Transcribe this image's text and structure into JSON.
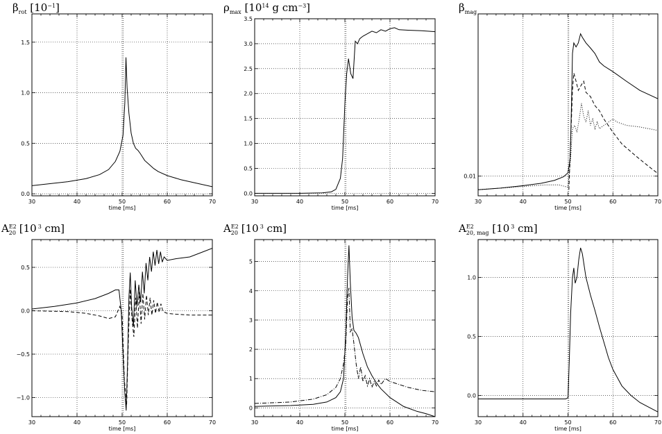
{
  "chart_data": [
    {
      "type": "line",
      "title_main": "β",
      "title_sub": "rot",
      "title_rest": " [10",
      "title_sup": "−1",
      "title_end": "]",
      "xlabel": "time [ms]",
      "xlim": [
        30,
        70
      ],
      "ylim": [
        -0.02,
        1.78
      ],
      "xticks": [
        30,
        40,
        50,
        60,
        70
      ],
      "xticklabels": [
        "30",
        "40",
        "50",
        "60",
        "70"
      ],
      "yticks": [
        0.0,
        0.5,
        1.0,
        1.5
      ],
      "yticklabels": [
        "0.0",
        "0.5",
        "1.0",
        "1.5"
      ],
      "vline": 50.2,
      "series": [
        {
          "style": "solid",
          "x": [
            30,
            34,
            38,
            42,
            45,
            47,
            48.5,
            49.5,
            50.2,
            50.6,
            50.85,
            51.1,
            51.5,
            52,
            52.5,
            53,
            53.5,
            54,
            55,
            56,
            57,
            58,
            60,
            63,
            66,
            70
          ],
          "y": [
            0.08,
            0.1,
            0.12,
            0.15,
            0.19,
            0.24,
            0.32,
            0.42,
            0.58,
            0.9,
            1.35,
            1.05,
            0.8,
            0.6,
            0.5,
            0.45,
            0.43,
            0.4,
            0.33,
            0.29,
            0.25,
            0.22,
            0.18,
            0.14,
            0.11,
            0.07
          ]
        }
      ]
    },
    {
      "type": "line",
      "title_main": "ρ",
      "title_sub": "max",
      "title_rest": " [10",
      "title_sup": "14",
      "title_end": " g cm",
      "title_sup2": "−3",
      "title_end2": "]",
      "xlabel": "time [ms]",
      "xlim": [
        30,
        70
      ],
      "ylim": [
        -0.05,
        3.5
      ],
      "xticks": [
        30,
        40,
        50,
        60,
        70
      ],
      "xticklabels": [
        "30",
        "40",
        "50",
        "60",
        "70"
      ],
      "yticks": [
        0.0,
        0.5,
        1.0,
        1.5,
        2.0,
        2.5,
        3.0,
        3.5
      ],
      "yticklabels": [
        "0.0",
        "0.5",
        "1.0",
        "1.5",
        "2.0",
        "2.5",
        "3.0",
        "3.5"
      ],
      "vline": 50.2,
      "series": [
        {
          "style": "solid",
          "x": [
            30,
            40,
            45,
            47,
            48,
            49,
            49.5,
            50,
            50.4,
            50.8,
            51.3,
            51.8,
            52.3,
            52.8,
            53.3,
            54,
            55,
            56,
            57,
            58,
            59,
            60,
            61,
            62,
            64,
            67,
            70
          ],
          "y": [
            0.0,
            0.0,
            0.01,
            0.03,
            0.08,
            0.3,
            0.7,
            1.8,
            2.4,
            2.7,
            2.4,
            2.3,
            3.05,
            3.0,
            3.1,
            3.15,
            3.2,
            3.25,
            3.22,
            3.28,
            3.25,
            3.3,
            3.32,
            3.28,
            3.27,
            3.26,
            3.24
          ]
        }
      ]
    },
    {
      "type": "line",
      "title_main": "β",
      "title_sub": "mag",
      "title_rest": "",
      "xlabel": "time [ms]",
      "xlim": [
        30,
        70
      ],
      "ylim": [
        0.0075,
        0.107
      ],
      "yscale": "log",
      "xticks": [
        30,
        40,
        50,
        60,
        70
      ],
      "xticklabels": [
        "30",
        "40",
        "50",
        "60",
        "70"
      ],
      "yticks": [
        0.01
      ],
      "yticklabels": [
        "0.01"
      ],
      "vline": 50.2,
      "series": [
        {
          "style": "solid",
          "x": [
            30,
            35,
            40,
            44,
            47,
            49,
            50,
            50.5,
            50.8,
            51,
            51.3,
            51.8,
            52.3,
            52.8,
            53.2,
            54,
            55,
            56,
            57,
            58,
            60,
            63,
            66,
            70
          ],
          "y": [
            0.0082,
            0.0084,
            0.0087,
            0.009,
            0.0094,
            0.0099,
            0.0105,
            0.013,
            0.03,
            0.06,
            0.07,
            0.066,
            0.07,
            0.08,
            0.076,
            0.07,
            0.065,
            0.06,
            0.053,
            0.05,
            0.046,
            0.04,
            0.035,
            0.031
          ]
        },
        {
          "style": "dashed",
          "x": [
            50.2,
            50.5,
            51,
            51.3,
            51.8,
            52.3,
            53,
            53.5,
            54,
            55,
            56,
            57,
            58,
            60,
            62,
            65,
            68,
            70
          ],
          "y": [
            0.0082,
            0.014,
            0.035,
            0.045,
            0.04,
            0.035,
            0.038,
            0.04,
            0.034,
            0.032,
            0.028,
            0.026,
            0.023,
            0.019,
            0.016,
            0.0135,
            0.0115,
            0.0104
          ]
        },
        {
          "style": "dotted",
          "x": [
            30,
            40,
            45,
            48,
            50,
            50.5,
            51,
            51.5,
            52,
            52.5,
            53,
            53.5,
            54,
            54.5,
            55,
            55.5,
            56,
            56.5,
            57,
            58,
            59,
            60,
            61,
            63,
            66,
            70
          ],
          "y": [
            0.0082,
            0.0086,
            0.0088,
            0.0088,
            0.0085,
            0.012,
            0.02,
            0.021,
            0.019,
            0.023,
            0.029,
            0.024,
            0.022,
            0.026,
            0.021,
            0.023,
            0.02,
            0.022,
            0.02,
            0.021,
            0.022,
            0.023,
            0.022,
            0.021,
            0.0205,
            0.0195
          ]
        }
      ]
    },
    {
      "type": "line",
      "title_main": "A",
      "title_sup": "E2",
      "title_sub": "20",
      "title_rest": " [10",
      "title_sup2": "3",
      "title_end": " cm]",
      "xlabel": "time [ms]",
      "xlim": [
        30,
        70
      ],
      "ylim": [
        -1.22,
        0.82
      ],
      "xticks": [
        30,
        40,
        50,
        60,
        70
      ],
      "xticklabels": [
        "30",
        "40",
        "50",
        "60",
        "70"
      ],
      "yticks": [
        -1.0,
        -0.5,
        0.0,
        0.5
      ],
      "yticklabels": [
        "−1.0",
        "−0.5",
        "0.0",
        "0.5"
      ],
      "vline": 50.2,
      "series": [
        {
          "style": "solid",
          "x": [
            30,
            35,
            40,
            44,
            47,
            48.5,
            49.3,
            49.8,
            50.2,
            50.6,
            50.9,
            51.2,
            51.5,
            51.8,
            52.1,
            52.5,
            52.9,
            53.3,
            53.7,
            54.1,
            54.5,
            54.9,
            55.3,
            55.7,
            56.1,
            56.5,
            56.9,
            57.3,
            57.7,
            58.1,
            58.5,
            58.9,
            59.3,
            60,
            62,
            65,
            68,
            70
          ],
          "y": [
            0.02,
            0.05,
            0.09,
            0.14,
            0.2,
            0.24,
            0.24,
            0.0,
            -0.5,
            -0.95,
            -1.15,
            -0.6,
            0.15,
            0.44,
            0.05,
            -0.18,
            0.35,
            0.05,
            0.3,
            0.1,
            0.45,
            0.2,
            0.55,
            0.35,
            0.62,
            0.45,
            0.68,
            0.52,
            0.7,
            0.54,
            0.68,
            0.56,
            0.62,
            0.58,
            0.6,
            0.62,
            0.68,
            0.72
          ]
        },
        {
          "style": "dashed",
          "x": [
            30,
            38,
            42,
            45,
            47,
            48.5,
            49.5,
            50,
            50.5,
            51,
            51.4,
            51.8,
            52.2,
            52.6,
            53,
            53.4,
            53.8,
            54.2,
            54.6,
            55,
            55.4,
            55.8,
            56.2,
            56.6,
            57,
            57.4,
            57.8,
            58.2,
            58.6,
            59,
            59.5,
            60,
            62,
            65,
            70
          ],
          "y": [
            0.0,
            -0.01,
            -0.03,
            -0.06,
            -0.09,
            -0.07,
            0.05,
            -0.05,
            -0.8,
            -1.08,
            -0.3,
            0.25,
            -0.1,
            -0.3,
            0.15,
            -0.2,
            0.22,
            -0.15,
            0.2,
            -0.1,
            0.18,
            -0.05,
            0.15,
            -0.05,
            0.12,
            -0.03,
            0.1,
            -0.02,
            0.08,
            0.0,
            -0.02,
            -0.03,
            -0.04,
            -0.05,
            -0.05
          ]
        }
      ]
    },
    {
      "type": "line",
      "title_main": "A",
      "title_sup": "E2",
      "title_sub": "20",
      "title_rest": " [10",
      "title_sup2": "3",
      "title_end": " cm]",
      "xlabel": "time [ms]",
      "xlim": [
        30,
        70
      ],
      "ylim": [
        -0.3,
        5.75
      ],
      "xticks": [
        30,
        40,
        50,
        60,
        70
      ],
      "xticklabels": [
        "30",
        "40",
        "50",
        "60",
        "70"
      ],
      "yticks": [
        0,
        1,
        2,
        3,
        4,
        5
      ],
      "yticklabels": [
        "0",
        "1",
        "2",
        "3",
        "4",
        "5"
      ],
      "vline": 50.2,
      "series": [
        {
          "style": "solid",
          "x": [
            30,
            38,
            43,
            46,
            48,
            49,
            49.7,
            50.2,
            50.6,
            50.9,
            51.2,
            51.6,
            52,
            52.5,
            53,
            54,
            55,
            56,
            57,
            58,
            60,
            63,
            66,
            68,
            70
          ],
          "y": [
            0.05,
            0.08,
            0.12,
            0.2,
            0.35,
            0.55,
            1.0,
            2.5,
            4.5,
            5.55,
            4.3,
            3.1,
            2.65,
            2.55,
            2.4,
            1.85,
            1.4,
            1.1,
            0.85,
            0.65,
            0.35,
            0.05,
            -0.12,
            -0.2,
            -0.3
          ]
        },
        {
          "style": "dashdot",
          "x": [
            30,
            38,
            43,
            46,
            48,
            49,
            49.7,
            50.2,
            50.6,
            50.9,
            51.2,
            51.6,
            52,
            52.5,
            53,
            53.5,
            54,
            54.5,
            55,
            55.5,
            56,
            56.5,
            57,
            57.5,
            58,
            59,
            60,
            62,
            64,
            67,
            70
          ],
          "y": [
            0.15,
            0.2,
            0.3,
            0.45,
            0.7,
            1.0,
            1.5,
            2.2,
            3.8,
            4.1,
            2.6,
            2.7,
            2.2,
            1.5,
            1.0,
            1.4,
            0.9,
            1.1,
            0.75,
            1.0,
            0.7,
            0.9,
            0.75,
            0.95,
            0.8,
            1.0,
            0.9,
            0.8,
            0.7,
            0.6,
            0.55
          ]
        }
      ]
    },
    {
      "type": "line",
      "title_main": "A",
      "title_sup": "E2",
      "title_sub": "20, mag",
      "title_rest": " [10",
      "title_sup2": "3",
      "title_end": " cm]",
      "xlabel": "time [ms]",
      "xlim": [
        30,
        70
      ],
      "ylim": [
        -0.18,
        1.32
      ],
      "xticks": [
        30,
        40,
        50,
        60,
        70
      ],
      "xticklabels": [
        "30",
        "40",
        "50",
        "60",
        "70"
      ],
      "yticks": [
        0.0,
        0.5,
        1.0
      ],
      "yticklabels": [
        "0.0",
        "0.5",
        "1.0"
      ],
      "vline": 50.2,
      "series": [
        {
          "style": "solid",
          "x": [
            30,
            40,
            48,
            49.5,
            50,
            50.3,
            50.6,
            51,
            51.3,
            51.6,
            52,
            52.4,
            52.8,
            53.2,
            53.6,
            54,
            55,
            56,
            57,
            58,
            59,
            60,
            61,
            62,
            63,
            64,
            65,
            66,
            68,
            70
          ],
          "y": [
            -0.03,
            -0.03,
            -0.03,
            -0.03,
            -0.02,
            0.3,
            0.7,
            1.0,
            1.08,
            0.95,
            1.0,
            1.15,
            1.25,
            1.2,
            1.1,
            1.0,
            0.85,
            0.72,
            0.58,
            0.45,
            0.32,
            0.22,
            0.15,
            0.08,
            0.04,
            0.0,
            -0.03,
            -0.06,
            -0.1,
            -0.14
          ]
        }
      ]
    }
  ]
}
